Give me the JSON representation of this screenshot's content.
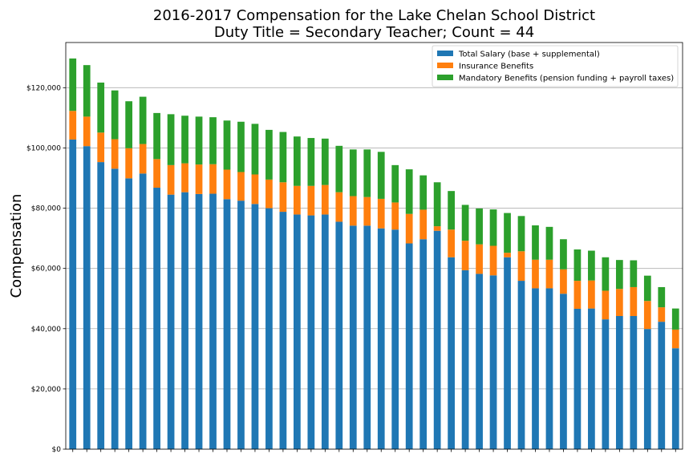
{
  "chart_data": {
    "type": "bar",
    "stacked": true,
    "title": "2016-2017 Compensation for the Lake Chelan School District",
    "subtitle": "Duty Title = Secondary Teacher; Count = 44",
    "xlabel": "",
    "ylabel": "Compensation",
    "ylim": [
      0,
      135000
    ],
    "yticks": [
      0,
      20000,
      40000,
      60000,
      80000,
      100000,
      120000
    ],
    "ytick_labels": [
      "$0",
      "$20,000",
      "$40,000",
      "$60,000",
      "$80,000",
      "$100,000",
      "$120,000"
    ],
    "grid": "horizontal",
    "legend_position": "top-right",
    "series": [
      {
        "name": "Total Salary (base + supplemental)",
        "color": "#1f77b4",
        "values": [
          102800,
          100600,
          95300,
          93100,
          89900,
          91500,
          86800,
          84500,
          85300,
          84700,
          84800,
          83000,
          82500,
          81400,
          80000,
          78800,
          77900,
          77600,
          77900,
          75500,
          74200,
          74200,
          73300,
          72900,
          68300,
          69700,
          72500,
          63700,
          59400,
          58200,
          57700,
          63700,
          55900,
          53400,
          53400,
          51600,
          46600,
          46700,
          43100,
          44200,
          44200,
          39900,
          42300,
          33500
        ]
      },
      {
        "name": "Insurance Benefits",
        "color": "#ff7f0e",
        "values": [
          9500,
          9800,
          9800,
          9800,
          10000,
          9800,
          9500,
          9800,
          9600,
          9800,
          9800,
          9800,
          9500,
          9800,
          9500,
          9800,
          9500,
          9800,
          9800,
          9800,
          9800,
          9500,
          9800,
          9000,
          9800,
          9800,
          1500,
          9200,
          9800,
          9800,
          9800,
          1500,
          9800,
          9500,
          9500,
          8100,
          9300,
          9300,
          9500,
          9000,
          9600,
          9300,
          4800,
          6200
        ]
      },
      {
        "name": "Mandatory Benefits (pension funding + payroll taxes)",
        "color": "#2ca02c",
        "values": [
          17400,
          17100,
          16600,
          16200,
          15600,
          15700,
          15300,
          16900,
          15800,
          15900,
          15600,
          16300,
          16700,
          16800,
          16500,
          16700,
          16400,
          15900,
          15400,
          15400,
          15500,
          15800,
          15600,
          12400,
          14800,
          11400,
          14600,
          12800,
          11900,
          11900,
          12100,
          13200,
          11700,
          11400,
          10900,
          10000,
          10400,
          9900,
          11100,
          9600,
          8900,
          8400,
          6700,
          7000
        ]
      }
    ]
  }
}
